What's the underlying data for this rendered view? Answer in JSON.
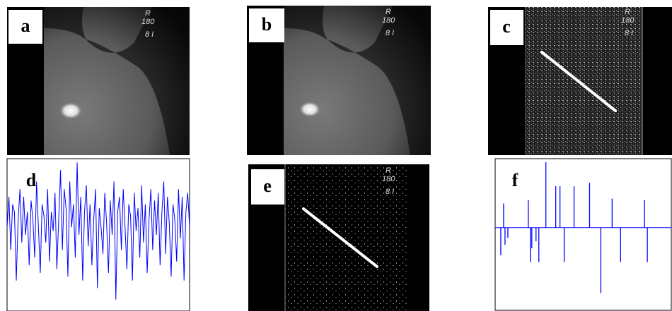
{
  "panels": [
    {
      "label": "a"
    },
    {
      "label": "b"
    },
    {
      "label": "c"
    },
    {
      "label": "d"
    },
    {
      "label": "e"
    },
    {
      "label": "f"
    }
  ],
  "markings": [
    "R",
    "180",
    "8 I"
  ],
  "chart_data": [
    {
      "type": "line",
      "color": "#0000ff",
      "ylim": [
        -1,
        1
      ],
      "values": [
        0.1,
        0.5,
        -0.2,
        0.4,
        0.3,
        -0.6,
        0.2,
        0.6,
        -0.1,
        0.5,
        0.0,
        0.3,
        -0.4,
        0.45,
        0.2,
        -0.3,
        0.7,
        0.1,
        -0.5,
        0.4,
        0.25,
        -0.1,
        0.6,
        -0.35,
        0.3,
        0.05,
        0.55,
        -0.45,
        0.2,
        0.85,
        -0.2,
        0.6,
        0.35,
        -0.55,
        0.7,
        0.1,
        0.4,
        -0.3,
        0.95,
        0.0,
        0.5,
        -0.6,
        0.3,
        0.65,
        -0.15,
        0.4,
        -0.4,
        0.2,
        0.6,
        -0.7,
        0.35,
        0.1,
        -0.25,
        0.55,
        0.15,
        -0.5,
        0.45,
        0.0,
        0.7,
        -0.85,
        0.3,
        0.5,
        -0.2,
        0.6,
        0.1,
        -0.45,
        0.4,
        0.25,
        -0.6,
        0.55,
        0.05,
        0.35,
        -0.3,
        0.65,
        -0.1,
        0.4,
        -0.5,
        0.2,
        0.6,
        -0.2,
        0.45,
        0.0,
        0.55,
        -0.4,
        0.3,
        0.7,
        -0.25,
        0.5,
        0.15,
        -0.55,
        0.4,
        0.2,
        -0.35,
        0.6,
        -0.05,
        0.5,
        -0.6,
        0.3,
        0.55,
        0.1
      ]
    },
    {
      "type": "spikes",
      "color": "#0000ff",
      "ylim": [
        -1.2,
        1
      ],
      "xlim": [
        0,
        250
      ],
      "x": [
        8,
        12,
        14,
        18,
        47,
        50,
        52,
        58,
        62,
        72,
        86,
        92,
        98,
        112,
        134,
        150,
        166,
        178,
        212,
        216
      ],
      "values": [
        -0.4,
        0.35,
        -0.25,
        -0.15,
        0.4,
        -0.5,
        -0.3,
        -0.2,
        -0.5,
        0.95,
        0.6,
        0.6,
        -0.5,
        0.6,
        0.65,
        -0.95,
        0.42,
        -0.5,
        0.4,
        -0.5
      ]
    }
  ]
}
